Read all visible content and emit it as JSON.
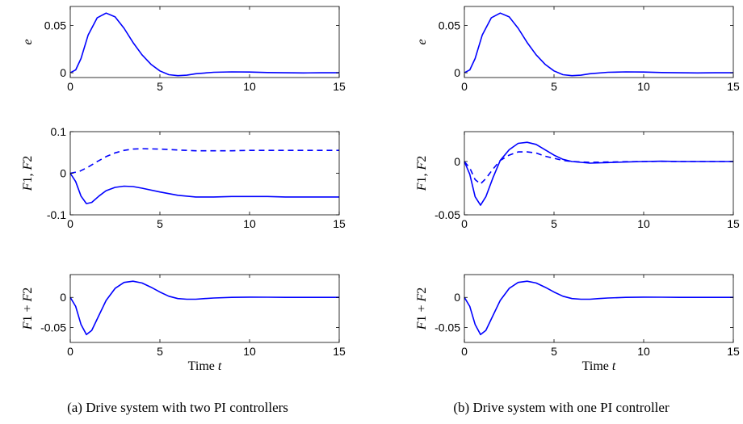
{
  "figure": {
    "caption_a": "(a) Drive system with two PI controllers",
    "caption_b": "(b) Drive system with one PI controller"
  },
  "colors": {
    "line": "#0000ff",
    "axes": "#000000"
  },
  "chart_data": [
    {
      "type": "line",
      "panel": "a",
      "row": 1,
      "ylabel": "e",
      "xlabel": "",
      "xlim": [
        0,
        15
      ],
      "ylim": [
        -0.005,
        0.07
      ],
      "xticks": [
        0,
        5,
        10,
        15
      ],
      "yticks": [
        0,
        0.05
      ],
      "yticklabels": [
        "0",
        "0.05"
      ],
      "grid": false,
      "series": [
        {
          "style": "solid",
          "x": [
            0,
            0.3,
            0.6,
            1.0,
            1.5,
            2.0,
            2.5,
            3.0,
            3.5,
            4.0,
            4.5,
            5.0,
            5.5,
            6.0,
            6.5,
            7.0,
            8.0,
            9.0,
            10.0,
            11.0,
            12.0,
            13.0,
            14.0,
            15.0
          ],
          "y": [
            0,
            0.003,
            0.015,
            0.04,
            0.058,
            0.063,
            0.059,
            0.047,
            0.032,
            0.019,
            0.009,
            0.002,
            -0.002,
            -0.003,
            -0.0025,
            -0.001,
            0.0005,
            0.001,
            0.0008,
            0.0003,
            0,
            -0.0001,
            0,
            0
          ]
        }
      ]
    },
    {
      "type": "line",
      "panel": "a",
      "row": 2,
      "ylabel": "F1, F2",
      "xlabel": "",
      "xlim": [
        0,
        15
      ],
      "ylim": [
        -0.1,
        0.1
      ],
      "xticks": [
        0,
        5,
        10,
        15
      ],
      "yticks": [
        -0.1,
        0,
        0.1
      ],
      "yticklabels": [
        "-0.1",
        "0",
        "0.1"
      ],
      "grid": false,
      "series": [
        {
          "style": "solid",
          "x": [
            0,
            0.3,
            0.6,
            0.9,
            1.2,
            1.6,
            2.0,
            2.5,
            3.0,
            3.5,
            4.0,
            5.0,
            6.0,
            7.0,
            8.0,
            9.0,
            10.0,
            11.0,
            12.0,
            13.0,
            14.0,
            15.0
          ],
          "y": [
            0,
            -0.02,
            -0.055,
            -0.073,
            -0.07,
            -0.055,
            -0.042,
            -0.034,
            -0.031,
            -0.032,
            -0.036,
            -0.045,
            -0.053,
            -0.057,
            -0.057,
            -0.056,
            -0.056,
            -0.056,
            -0.057,
            -0.057,
            -0.057,
            -0.057
          ]
        },
        {
          "style": "dashed",
          "x": [
            0,
            0.5,
            1.0,
            1.5,
            2.0,
            2.5,
            3.0,
            3.5,
            4.0,
            5.0,
            6.0,
            7.0,
            8.0,
            9.0,
            10.0,
            11.0,
            12.0,
            13.0,
            14.0,
            15.0
          ],
          "y": [
            0,
            0.004,
            0.015,
            0.028,
            0.04,
            0.049,
            0.055,
            0.058,
            0.059,
            0.058,
            0.056,
            0.054,
            0.054,
            0.054,
            0.055,
            0.055,
            0.055,
            0.055,
            0.055,
            0.055
          ]
        }
      ]
    },
    {
      "type": "line",
      "panel": "a",
      "row": 3,
      "ylabel": "F1 + F2",
      "xlabel": "Time t",
      "xlim": [
        0,
        15
      ],
      "ylim": [
        -0.075,
        0.038
      ],
      "xticks": [
        0,
        5,
        10,
        15
      ],
      "yticks": [
        -0.05,
        0
      ],
      "yticklabels": [
        "-0.05",
        "0"
      ],
      "grid": false,
      "series": [
        {
          "style": "solid",
          "x": [
            0,
            0.3,
            0.6,
            0.9,
            1.2,
            1.6,
            2.0,
            2.5,
            3.0,
            3.5,
            4.0,
            4.5,
            5.0,
            5.5,
            6.0,
            6.5,
            7.0,
            7.5,
            8.0,
            9.0,
            10.0,
            11.0,
            12.0,
            13.0,
            14.0,
            15.0
          ],
          "y": [
            0,
            -0.015,
            -0.045,
            -0.062,
            -0.055,
            -0.03,
            -0.005,
            0.015,
            0.025,
            0.027,
            0.024,
            0.017,
            0.009,
            0.002,
            -0.002,
            -0.003,
            -0.003,
            -0.002,
            -0.001,
            0,
            0.0005,
            0.0003,
            0,
            0,
            0,
            0
          ]
        }
      ]
    },
    {
      "type": "line",
      "panel": "b",
      "row": 1,
      "ylabel": "e",
      "xlabel": "",
      "xlim": [
        0,
        15
      ],
      "ylim": [
        -0.005,
        0.07
      ],
      "xticks": [
        0,
        5,
        10,
        15
      ],
      "yticks": [
        0,
        0.05
      ],
      "yticklabels": [
        "0",
        "0.05"
      ],
      "grid": false,
      "series": [
        {
          "style": "solid",
          "x": [
            0,
            0.3,
            0.6,
            1.0,
            1.5,
            2.0,
            2.5,
            3.0,
            3.5,
            4.0,
            4.5,
            5.0,
            5.5,
            6.0,
            6.5,
            7.0,
            8.0,
            9.0,
            10.0,
            11.0,
            12.0,
            13.0,
            14.0,
            15.0
          ],
          "y": [
            0,
            0.003,
            0.015,
            0.04,
            0.058,
            0.063,
            0.059,
            0.047,
            0.032,
            0.019,
            0.009,
            0.002,
            -0.002,
            -0.003,
            -0.0025,
            -0.001,
            0.0005,
            0.001,
            0.0008,
            0.0003,
            0,
            -0.0001,
            0,
            0
          ]
        }
      ]
    },
    {
      "type": "line",
      "panel": "b",
      "row": 2,
      "ylabel": "F1, F2",
      "xlabel": "",
      "xlim": [
        0,
        15
      ],
      "ylim": [
        -0.05,
        0.028
      ],
      "xticks": [
        0,
        5,
        10,
        15
      ],
      "yticks": [
        -0.05,
        0
      ],
      "yticklabels": [
        "-0.05",
        "0"
      ],
      "grid": false,
      "series": [
        {
          "style": "solid",
          "x": [
            0,
            0.3,
            0.6,
            0.9,
            1.2,
            1.6,
            2.0,
            2.5,
            3.0,
            3.5,
            4.0,
            4.5,
            5.0,
            5.5,
            6.0,
            7.0,
            8.0,
            9.0,
            10.0,
            11.0,
            12.0,
            13.0,
            14.0,
            15.0
          ],
          "y": [
            0,
            -0.012,
            -0.033,
            -0.041,
            -0.033,
            -0.015,
            0.001,
            0.011,
            0.017,
            0.018,
            0.016,
            0.011,
            0.006,
            0.002,
            0,
            -0.0015,
            -0.001,
            -0.0005,
            0,
            0.0003,
            0,
            0,
            0,
            0
          ]
        },
        {
          "style": "dashed",
          "x": [
            0,
            0.3,
            0.6,
            0.9,
            1.2,
            1.6,
            2.0,
            2.5,
            3.0,
            3.5,
            4.0,
            4.5,
            5.0,
            5.5,
            6.0,
            7.0,
            8.0,
            9.0,
            10.0,
            11.0,
            12.0,
            13.0,
            14.0,
            15.0
          ],
          "y": [
            0,
            -0.006,
            -0.017,
            -0.021,
            -0.016,
            -0.007,
            0.001,
            0.006,
            0.009,
            0.009,
            0.008,
            0.005,
            0.003,
            0.001,
            0,
            -0.0008,
            -0.0005,
            -0.0002,
            0,
            0.0001,
            0,
            0,
            0,
            0
          ]
        }
      ]
    },
    {
      "type": "line",
      "panel": "b",
      "row": 3,
      "ylabel": "F1 + F2",
      "xlabel": "Time t",
      "xlim": [
        0,
        15
      ],
      "ylim": [
        -0.075,
        0.038
      ],
      "xticks": [
        0,
        5,
        10,
        15
      ],
      "yticks": [
        -0.05,
        0
      ],
      "yticklabels": [
        "-0.05",
        "0"
      ],
      "grid": false,
      "series": [
        {
          "style": "solid",
          "x": [
            0,
            0.3,
            0.6,
            0.9,
            1.2,
            1.6,
            2.0,
            2.5,
            3.0,
            3.5,
            4.0,
            4.5,
            5.0,
            5.5,
            6.0,
            6.5,
            7.0,
            7.5,
            8.0,
            9.0,
            10.0,
            11.0,
            12.0,
            13.0,
            14.0,
            15.0
          ],
          "y": [
            0,
            -0.015,
            -0.045,
            -0.062,
            -0.055,
            -0.03,
            -0.005,
            0.015,
            0.025,
            0.027,
            0.024,
            0.017,
            0.009,
            0.002,
            -0.002,
            -0.003,
            -0.003,
            -0.002,
            -0.001,
            0,
            0.0005,
            0.0003,
            0,
            0,
            0,
            0
          ]
        }
      ]
    }
  ]
}
